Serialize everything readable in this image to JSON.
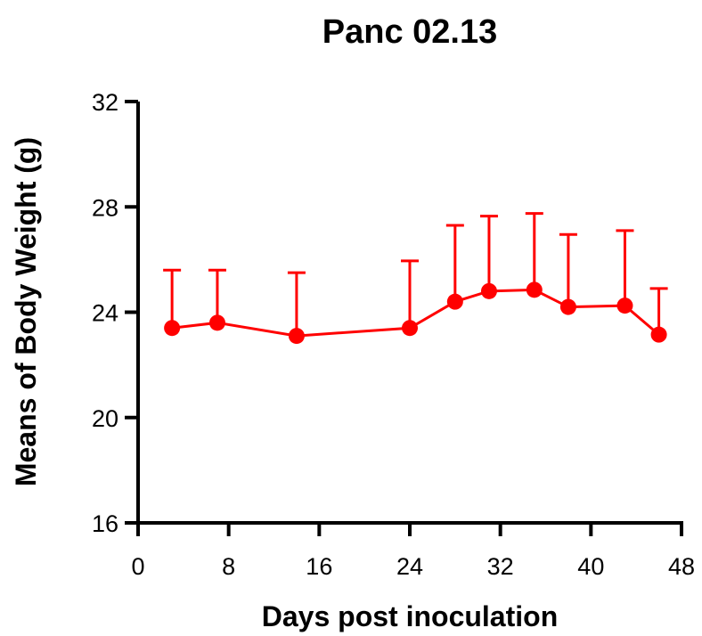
{
  "chart_data": {
    "type": "line",
    "title": "Panc 02.13",
    "xlabel": "Days post inoculation",
    "ylabel": "Means of Body Weight (g)",
    "xlim": [
      0,
      48
    ],
    "ylim": [
      16,
      32
    ],
    "xticks": [
      "0",
      "8",
      "16",
      "24",
      "32",
      "40",
      "48"
    ],
    "yticks": [
      "16",
      "20",
      "24",
      "28",
      "32"
    ],
    "grid": false,
    "legend": "none",
    "series": [
      {
        "color": "#ff0000",
        "marker": "circle",
        "x": [
          3,
          7,
          14,
          24,
          28,
          31,
          35,
          38,
          43,
          46
        ],
        "y": [
          23.4,
          23.6,
          23.1,
          23.4,
          24.4,
          24.8,
          24.85,
          24.2,
          24.25,
          23.15
        ],
        "error_upper": [
          2.2,
          2.0,
          2.4,
          2.55,
          2.9,
          2.85,
          2.9,
          2.75,
          2.85,
          1.75
        ]
      }
    ]
  }
}
